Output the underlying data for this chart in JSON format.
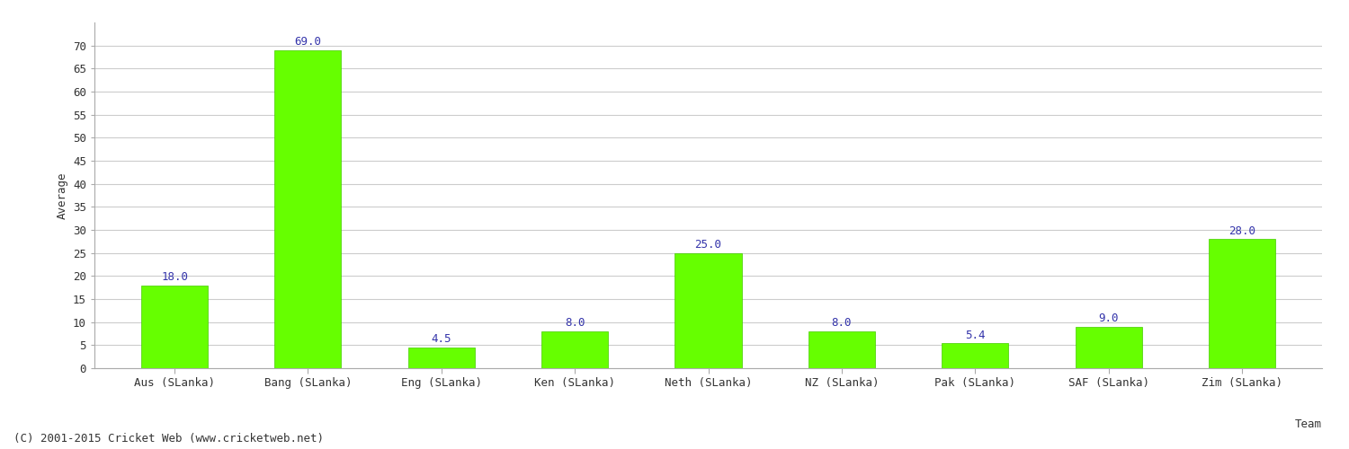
{
  "categories": [
    "Aus (SLanka)",
    "Bang (SLanka)",
    "Eng (SLanka)",
    "Ken (SLanka)",
    "Neth (SLanka)",
    "NZ (SLanka)",
    "Pak (SLanka)",
    "SAF (SLanka)",
    "Zim (SLanka)"
  ],
  "values": [
    18.0,
    69.0,
    4.5,
    8.0,
    25.0,
    8.0,
    5.4,
    9.0,
    28.0
  ],
  "bar_color": "#66ff00",
  "bar_edge_color": "#44cc00",
  "label_color": "#3333aa",
  "ylabel": "Average",
  "xlabel": "Team",
  "ylim": [
    0,
    75
  ],
  "yticks": [
    0,
    5,
    10,
    15,
    20,
    25,
    30,
    35,
    40,
    45,
    50,
    55,
    60,
    65,
    70
  ],
  "background_color": "#ffffff",
  "grid_color": "#cccccc",
  "label_fontsize": 9,
  "axis_label_fontsize": 9,
  "tick_fontsize": 9,
  "footer_text": "(C) 2001-2015 Cricket Web (www.cricketweb.net)",
  "footer_fontsize": 9,
  "footer_color": "#333333"
}
